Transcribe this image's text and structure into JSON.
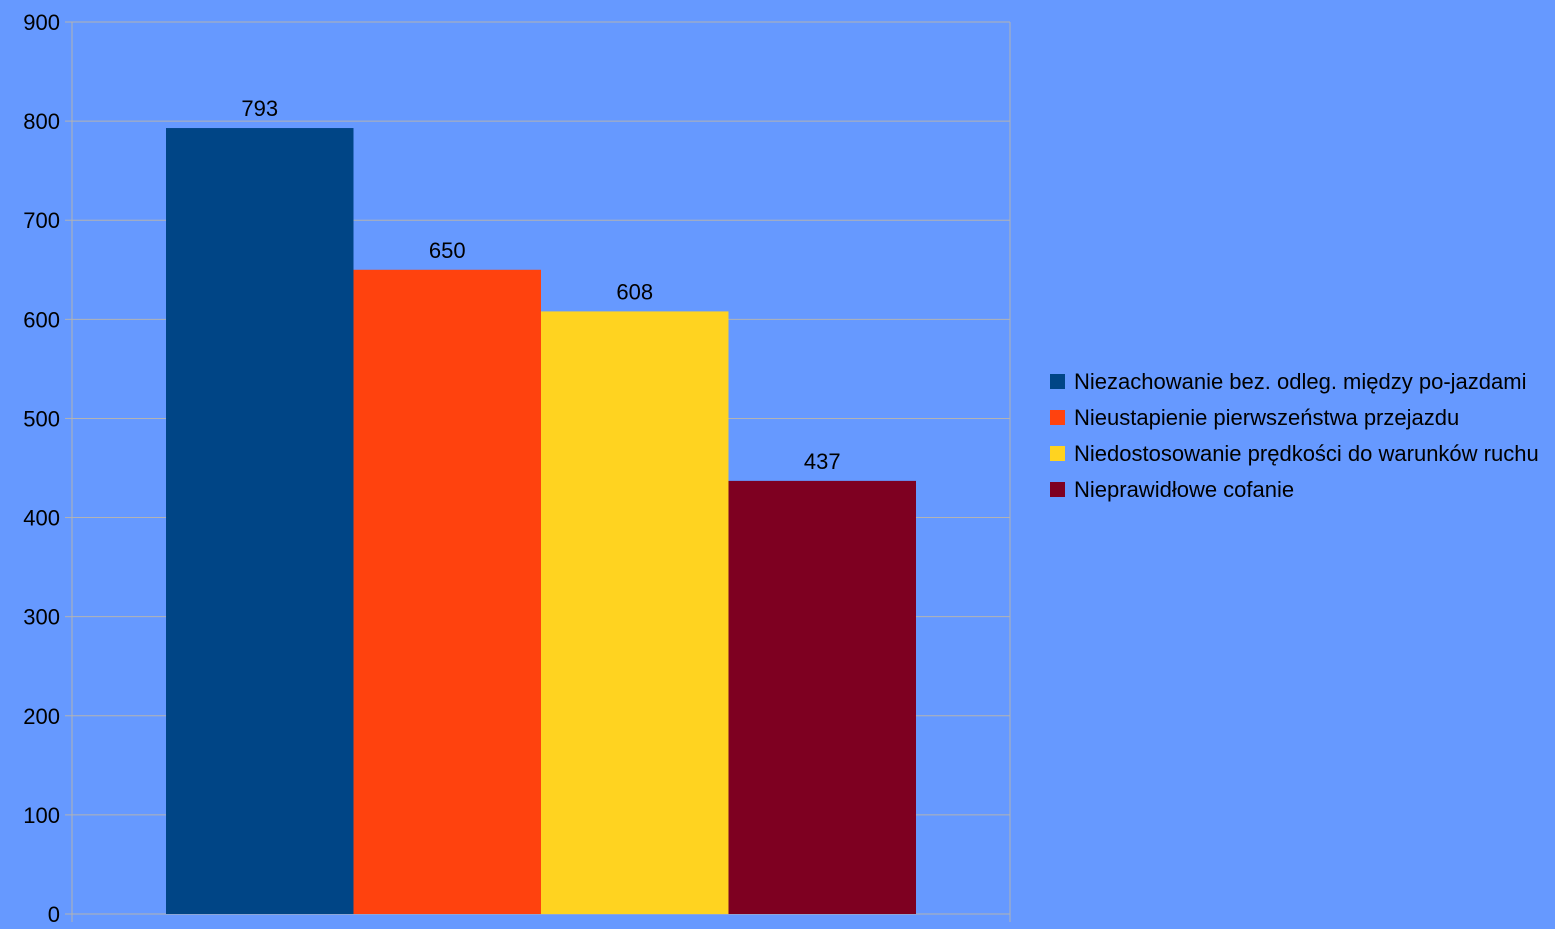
{
  "chart_data": {
    "type": "bar",
    "title": "",
    "xlabel": "",
    "ylabel": "",
    "ylim": [
      0,
      900
    ],
    "yticks": [
      0,
      100,
      200,
      300,
      400,
      500,
      600,
      700,
      800,
      900
    ],
    "ytick_labels": [
      "0",
      "100",
      "200",
      "300",
      "400",
      "500",
      "600",
      "700",
      "800",
      "900"
    ],
    "grid": true,
    "legend_position": "right",
    "background_color": "#6699ff",
    "gridline_color": "#b3b3b3",
    "series": [
      {
        "name": "Niezachowanie bez. odleg. między po-jazdami",
        "value": 793,
        "value_label": "793",
        "color": "#004586"
      },
      {
        "name": "Nieustapienie pierwszeństwa przejazdu",
        "value": 650,
        "value_label": "650",
        "color": "#ff420e"
      },
      {
        "name": "Niedostosowanie prędkości do warunków ruchu",
        "value": 608,
        "value_label": "608",
        "color": "#ffd320"
      },
      {
        "name": "Nieprawidłowe cofanie",
        "value": 437,
        "value_label": "437",
        "color": "#7e0021"
      }
    ]
  },
  "legend": {
    "items": [
      {
        "label": "Niezachowanie bez. odleg. między po-jazdami",
        "color": "#004586"
      },
      {
        "label": "Nieustapienie pierwszeństwa przejazdu",
        "color": "#ff420e"
      },
      {
        "label": "Niedostosowanie prędkości do warunków ruchu",
        "color": "#ffd320"
      },
      {
        "label": "Nieprawidłowe cofanie",
        "color": "#7e0021"
      }
    ]
  }
}
